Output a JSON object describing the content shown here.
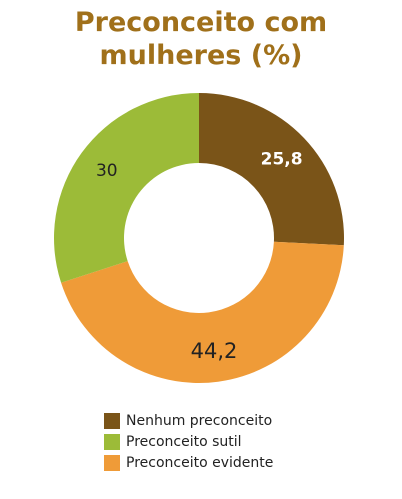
{
  "title_lines": [
    "Preconceito com",
    "mulheres (%)"
  ],
  "chart_data": {
    "type": "pie",
    "style": "donut",
    "title": "Preconceito com mulheres (%)",
    "slices": [
      {
        "label": "Nenhum preconceito",
        "value": 25.8,
        "display": "25,8",
        "color": "#7a5418",
        "text_color": "#ffffff"
      },
      {
        "label": "Preconceito evidente",
        "value": 44.2,
        "display": "44,2",
        "color": "#ef9b38",
        "text_color": "#222222"
      },
      {
        "label": "Preconceito sutil",
        "value": 30,
        "display": "30",
        "color": "#9cbb38",
        "text_color": "#222222"
      }
    ],
    "start": "top",
    "direction": "clockwise",
    "legend_position": "bottom"
  },
  "legend": [
    {
      "label": "Nenhum preconceito",
      "color": "#7a5418"
    },
    {
      "label": "Preconceito sutil",
      "color": "#9cbb38"
    },
    {
      "label": "Preconceito evidente",
      "color": "#ef9b38"
    }
  ]
}
